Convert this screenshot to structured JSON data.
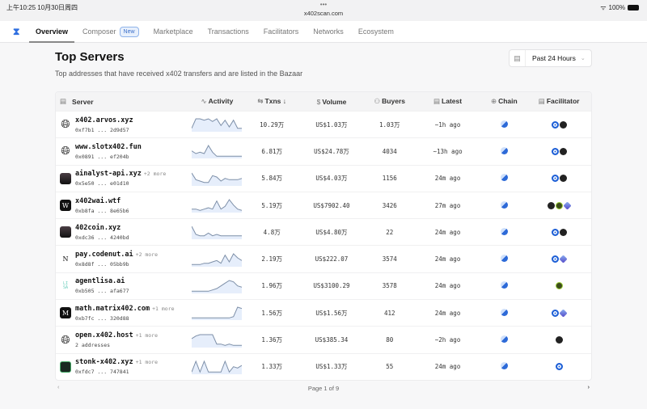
{
  "status_bar": {
    "time": "上午10:25  10月30日周四",
    "dots": "•••",
    "url": "x402scan.com",
    "battery": "100%"
  },
  "nav": {
    "items": [
      {
        "label": "Overview",
        "active": true
      },
      {
        "label": "Composer",
        "badge": "New"
      },
      {
        "label": "Marketplace"
      },
      {
        "label": "Transactions"
      },
      {
        "label": "Facilitators"
      },
      {
        "label": "Networks"
      },
      {
        "label": "Ecosystem"
      }
    ]
  },
  "page": {
    "title": "Top Servers",
    "subtitle": "Top addresses that have received x402 transfers and are listed in the Bazaar",
    "range": "Past 24 Hours"
  },
  "columns": {
    "server": "Server",
    "activity": "Activity",
    "txns": "Txns ↓",
    "volume": "Volume",
    "buyers": "Buyers",
    "latest": "Latest",
    "chain": "Chain",
    "facilitator": "Facilitator"
  },
  "rows": [
    {
      "name": "x402.arvos.xyz",
      "more": "",
      "addr": "0xf7b1 ... 2d9d57",
      "avatar": "globe",
      "txns": "10.29万",
      "volume": "US$1.03万",
      "buyers": "1.03万",
      "latest": "~1h ago",
      "facilitators": [
        "coinbase",
        "dark"
      ],
      "activity": [
        2,
        9,
        9,
        8,
        9,
        7,
        9,
        4,
        8,
        3,
        8,
        2,
        2
      ]
    },
    {
      "name": "www.slotx402.fun",
      "more": "",
      "addr": "0x0891 ... ef204b",
      "avatar": "globe",
      "txns": "6.81万",
      "volume": "US$24.78万",
      "buyers": "4034",
      "latest": "~13h ago",
      "facilitators": [
        "coinbase",
        "dark"
      ],
      "activity": [
        5,
        3,
        4,
        3,
        9,
        4,
        1,
        1,
        1,
        1,
        1,
        1,
        1
      ]
    },
    {
      "name": "ainalyst-api.xyz",
      "more": "+2 more",
      "addr": "0x5e50 ... e01d10",
      "avatar": "grad",
      "txns": "5.84万",
      "volume": "US$4.03万",
      "buyers": "1156",
      "latest": "24m ago",
      "facilitators": [
        "coinbase",
        "dark"
      ],
      "activity": [
        9,
        4,
        3,
        2,
        2,
        7,
        6,
        3,
        5,
        4,
        4,
        4,
        5
      ]
    },
    {
      "name": "x402wai.wtf",
      "more": "",
      "addr": "0xb8fa ... 8e65b6",
      "avatar": "W",
      "txns": "5.19万",
      "volume": "US$7902.40",
      "buyers": "3426",
      "latest": "27m ago",
      "facilitators": [
        "dark",
        "green",
        "cube"
      ],
      "activity": [
        2,
        2,
        1,
        2,
        3,
        2,
        8,
        2,
        4,
        9,
        5,
        2,
        1
      ]
    },
    {
      "name": "402coin.xyz",
      "more": "",
      "addr": "0xdc36 ... 4240bd",
      "avatar": "grad",
      "txns": "4.8万",
      "volume": "US$4.80万",
      "buyers": "22",
      "latest": "24m ago",
      "facilitators": [
        "coinbase",
        "dark"
      ],
      "activity": [
        9,
        3,
        2,
        2,
        4,
        2,
        3,
        2,
        2,
        2,
        2,
        2,
        2
      ]
    },
    {
      "name": "pay.codenut.ai",
      "more": "+2 more",
      "addr": "0x8d8f ... 05bb9b",
      "avatar": "N",
      "txns": "2.19万",
      "volume": "US$222.07",
      "buyers": "3574",
      "latest": "24m ago",
      "facilitators": [
        "coinbase",
        "cube"
      ],
      "activity": [
        1,
        1,
        1,
        2,
        2,
        3,
        4,
        2,
        8,
        3,
        9,
        6,
        4
      ]
    },
    {
      "name": "agentlisa.ai",
      "more": "",
      "addr": "0xb505 ... afa677",
      "avatar": "LISA",
      "txns": "1.96万",
      "volume": "US$3100.29",
      "buyers": "3578",
      "latest": "24m ago",
      "facilitators": [
        "green"
      ],
      "activity": [
        1,
        1,
        1,
        1,
        1,
        2,
        3,
        5,
        7,
        9,
        8,
        5,
        4
      ]
    },
    {
      "name": "math.matrix402.com",
      "more": "+1 more",
      "addr": "0xb7fc ... 320d88",
      "avatar": "M",
      "txns": "1.56万",
      "volume": "US$1.56万",
      "buyers": "412",
      "latest": "24m ago",
      "facilitators": [
        "coinbase",
        "cube"
      ],
      "activity": [
        1,
        1,
        1,
        1,
        1,
        1,
        1,
        1,
        1,
        1,
        2,
        9,
        8
      ]
    },
    {
      "name": "open.x402.host",
      "more": "+1 more",
      "addr": "2 addresses",
      "avatar": "globe",
      "txns": "1.36万",
      "volume": "US$385.34",
      "buyers": "80",
      "latest": "~2h ago",
      "facilitators": [
        "dark"
      ],
      "activity": [
        6,
        8,
        9,
        9,
        9,
        9,
        2,
        2,
        1,
        2,
        1,
        1,
        1
      ]
    },
    {
      "name": "stonk-x402.xyz",
      "more": "+1 more",
      "addr": "0xfdc7 ... 747841",
      "avatar": "stonk",
      "txns": "1.33万",
      "volume": "US$1.33万",
      "buyers": "55",
      "latest": "24m ago",
      "facilitators": [
        "coinbase"
      ],
      "activity": [
        1,
        9,
        1,
        9,
        1,
        1,
        1,
        1,
        9,
        1,
        5,
        4,
        6
      ]
    }
  ],
  "pager": {
    "label": "Page 1 of 9",
    "prev": "‹",
    "next": "›"
  }
}
